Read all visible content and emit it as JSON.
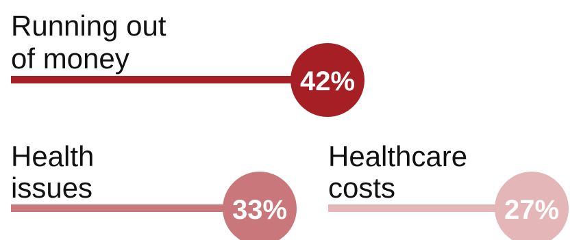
{
  "chart_data": {
    "type": "bar",
    "categories": [
      "Running out of money",
      "Health issues",
      "Healthcare costs"
    ],
    "label_lines": [
      [
        "Running out",
        "of money"
      ],
      [
        "Health",
        "issues"
      ],
      [
        "Healthcare",
        "costs"
      ]
    ],
    "values": [
      42,
      33,
      27
    ],
    "value_labels": [
      "42%",
      "33%",
      "27%"
    ],
    "unit": "%",
    "colors": [
      "#a51f24",
      "#c9777a",
      "#e4b6b7"
    ],
    "title": "",
    "xlabel": "",
    "ylabel": "",
    "grid": false,
    "legend": "none"
  }
}
